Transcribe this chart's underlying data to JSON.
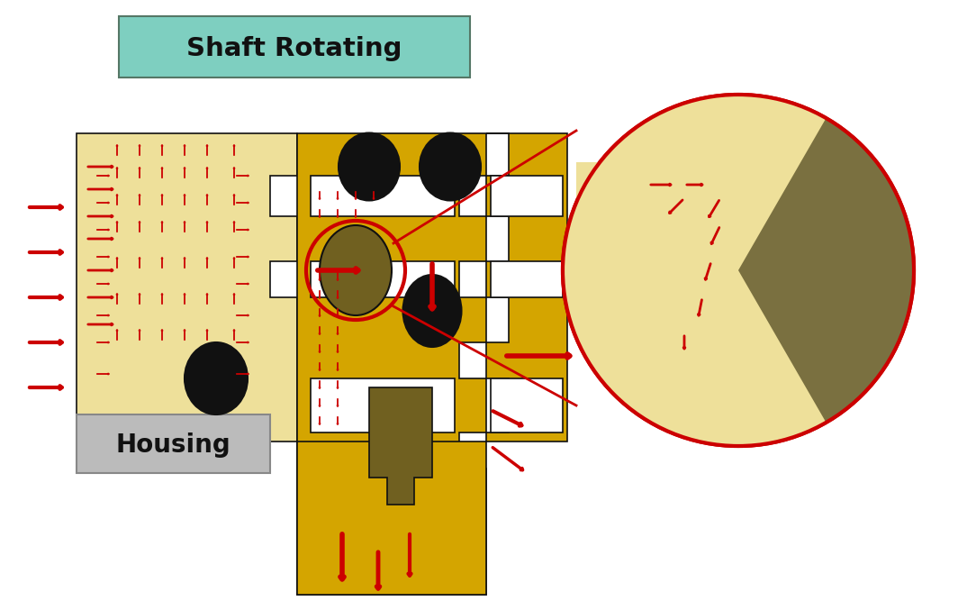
{
  "title": "Shaft Rotating",
  "housing_label": "Housing",
  "bg_color": "#FFFFFF",
  "teal_color": "#7ECFC0",
  "yellow_dark": "#E6C800",
  "yellow_light": "#F5E9A0",
  "black": "#1A1A1A",
  "red": "#CC0000",
  "gray": "#C0C0C0",
  "olive": "#7A7A3A",
  "dark_yellow": "#C8A800"
}
